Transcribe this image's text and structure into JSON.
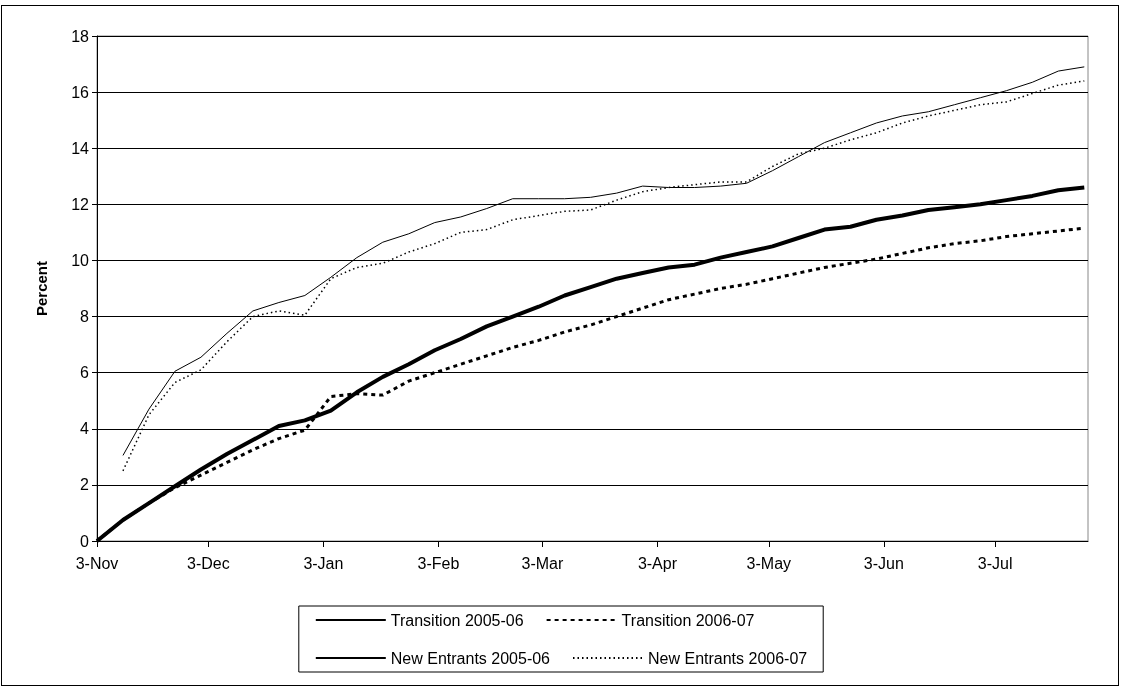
{
  "chart_data": {
    "type": "line",
    "ylabel": "Percent",
    "xlim": [
      "2005-11-03",
      "2006-07-28"
    ],
    "xticks": [
      {
        "value": "2005-11-03",
        "label": "3-Nov"
      },
      {
        "value": "2005-12-03",
        "label": "3-Dec"
      },
      {
        "value": "2006-01-03",
        "label": "3-Jan"
      },
      {
        "value": "2006-02-03",
        "label": "3-Feb"
      },
      {
        "value": "2006-03-03",
        "label": "3-Mar"
      },
      {
        "value": "2006-04-03",
        "label": "3-Apr"
      },
      {
        "value": "2006-05-03",
        "label": "3-May"
      },
      {
        "value": "2006-06-03",
        "label": "3-Jun"
      },
      {
        "value": "2006-07-03",
        "label": "3-Jul"
      }
    ],
    "ylim": [
      0,
      18
    ],
    "yticks": [
      0,
      2,
      4,
      6,
      8,
      10,
      12,
      14,
      16,
      18
    ],
    "grid": "y",
    "legend": "bottom",
    "marker": "none",
    "x": [
      "2005-11-03",
      "2005-11-10",
      "2005-11-17",
      "2005-11-24",
      "2005-12-01",
      "2005-12-08",
      "2005-12-15",
      "2005-12-22",
      "2005-12-29",
      "2006-01-05",
      "2006-01-12",
      "2006-01-19",
      "2006-01-26",
      "2006-02-02",
      "2006-02-09",
      "2006-02-16",
      "2006-02-23",
      "2006-03-02",
      "2006-03-09",
      "2006-03-16",
      "2006-03-23",
      "2006-03-30",
      "2006-04-06",
      "2006-04-13",
      "2006-04-20",
      "2006-04-27",
      "2006-05-04",
      "2006-05-11",
      "2006-05-18",
      "2006-05-25",
      "2006-06-01",
      "2006-06-08",
      "2006-06-15",
      "2006-06-22",
      "2006-06-29",
      "2006-07-06",
      "2006-07-13",
      "2006-07-20",
      "2006-07-27"
    ],
    "series": [
      {
        "name": "Transition 2005-06",
        "color": "#000000",
        "line_style": "solid",
        "values": [
          0,
          0.75,
          1.35,
          1.95,
          2.55,
          3.1,
          3.6,
          4.1,
          4.3,
          4.65,
          5.3,
          5.85,
          6.3,
          6.8,
          7.2,
          7.65,
          8.0,
          8.35,
          8.75,
          9.05,
          9.35,
          9.55,
          9.75,
          9.85,
          10.1,
          10.3,
          10.5,
          10.8,
          11.1,
          11.2,
          11.45,
          11.6,
          11.8,
          11.9,
          12.0,
          12.15,
          12.3,
          12.5,
          12.6
        ]
      },
      {
        "name": "Transition 2006-07",
        "color": "#000000",
        "line_style": "dashed",
        "values": [
          0,
          0.75,
          1.35,
          1.9,
          2.35,
          2.8,
          3.25,
          3.65,
          3.95,
          5.15,
          5.25,
          5.2,
          5.7,
          6.0,
          6.3,
          6.6,
          6.9,
          7.15,
          7.45,
          7.7,
          8.0,
          8.3,
          8.6,
          8.8,
          9.0,
          9.15,
          9.35,
          9.55,
          9.75,
          9.9,
          10.05,
          10.25,
          10.45,
          10.6,
          10.7,
          10.85,
          10.95,
          11.05,
          11.15
        ]
      },
      {
        "name": "New Entrants 2005-06",
        "color": "#000000",
        "line_style": "solid",
        "values": [
          null,
          3.05,
          4.7,
          6.05,
          6.55,
          7.4,
          8.2,
          8.5,
          8.75,
          9.4,
          10.1,
          10.65,
          10.95,
          11.35,
          11.55,
          11.85,
          12.2,
          12.2,
          12.2,
          12.25,
          12.4,
          12.65,
          12.6,
          12.6,
          12.65,
          12.75,
          13.2,
          13.7,
          14.2,
          14.55,
          14.9,
          15.15,
          15.3,
          15.55,
          15.8,
          16.05,
          16.35,
          16.75,
          16.9
        ]
      },
      {
        "name": "New Entrants 2006-07",
        "color": "#000000",
        "line_style": "dotted",
        "values": [
          null,
          2.5,
          4.5,
          5.65,
          6.1,
          7.1,
          8.0,
          8.2,
          8.05,
          9.35,
          9.75,
          9.9,
          10.3,
          10.6,
          11.0,
          11.1,
          11.45,
          11.6,
          11.75,
          11.8,
          12.15,
          12.45,
          12.6,
          12.7,
          12.8,
          12.8,
          13.35,
          13.8,
          14.0,
          14.3,
          14.55,
          14.9,
          15.15,
          15.35,
          15.55,
          15.65,
          15.95,
          16.25,
          16.4
        ]
      }
    ]
  }
}
